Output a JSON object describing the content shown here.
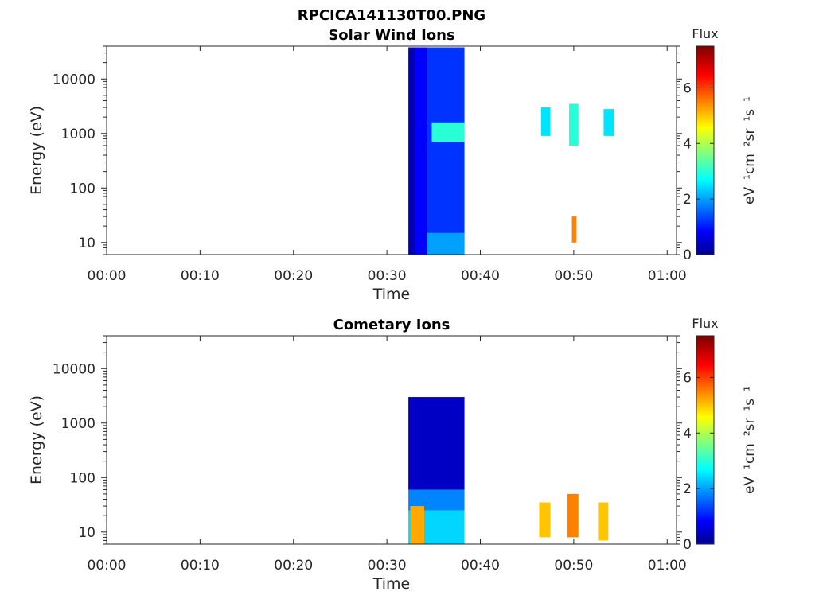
{
  "figure": {
    "title": "RPCICA141130T00.PNG"
  },
  "colorscale": {
    "name": "jet",
    "stops": [
      "#00008f",
      "#0000ff",
      "#00ffff",
      "#ffff00",
      "#ff0000",
      "#800000"
    ]
  },
  "chart_data": [
    {
      "type": "heatmap",
      "title": "Solar Wind Ions",
      "xlabel": "Time",
      "ylabel": "Energy (eV)",
      "x_ticks": [
        "00:00",
        "00:10",
        "00:20",
        "00:30",
        "00:40",
        "00:50",
        "01:00"
      ],
      "x_tick_minutes": [
        0,
        10,
        20,
        30,
        40,
        50,
        60
      ],
      "xlim_minutes": [
        0,
        61
      ],
      "y_scale": "log",
      "ylim": [
        6,
        40000
      ],
      "y_ticks": [
        "10",
        "100",
        "1000",
        "10000"
      ],
      "y_tick_values": [
        10,
        100,
        1000,
        10000
      ],
      "colorbar": {
        "label": "Flux",
        "units": "eV⁻¹cm⁻²sr⁻¹s⁻¹",
        "ticks": [
          "0",
          "2",
          "4",
          "6"
        ],
        "tick_values": [
          0,
          2,
          4,
          6
        ],
        "range": [
          0,
          7.5
        ]
      },
      "regions": [
        {
          "t_start": 32.3,
          "t_end": 33.0,
          "e_min": 6,
          "e_max": 38000,
          "flux": 0.3,
          "note": "dark blue column"
        },
        {
          "t_start": 33.0,
          "t_end": 34.3,
          "e_min": 6,
          "e_max": 38000,
          "flux": 0.8
        },
        {
          "t_start": 34.3,
          "t_end": 38.3,
          "e_min": 6,
          "e_max": 38000,
          "flux": 1.2
        },
        {
          "t_start": 34.8,
          "t_end": 38.3,
          "e_min": 700,
          "e_max": 1600,
          "flux": 3.0
        },
        {
          "t_start": 34.3,
          "t_end": 38.3,
          "e_min": 6,
          "e_max": 15,
          "flux": 2.0
        },
        {
          "t_start": 46.5,
          "t_end": 47.5,
          "e_min": 900,
          "e_max": 3000,
          "flux": 2.5
        },
        {
          "t_start": 49.5,
          "t_end": 50.5,
          "e_min": 600,
          "e_max": 3500,
          "flux": 3.0
        },
        {
          "t_start": 53.2,
          "t_end": 54.3,
          "e_min": 900,
          "e_max": 2800,
          "flux": 2.5
        },
        {
          "t_start": 49.8,
          "t_end": 50.3,
          "e_min": 10,
          "e_max": 30,
          "flux": 5.5
        }
      ]
    },
    {
      "type": "heatmap",
      "title": "Cometary Ions",
      "xlabel": "Time",
      "ylabel": "Energy (eV)",
      "x_ticks": [
        "00:00",
        "00:10",
        "00:20",
        "00:30",
        "00:40",
        "00:50",
        "01:00"
      ],
      "x_tick_minutes": [
        0,
        10,
        20,
        30,
        40,
        50,
        60
      ],
      "xlim_minutes": [
        0,
        61
      ],
      "y_scale": "log",
      "ylim": [
        6,
        40000
      ],
      "y_ticks": [
        "10",
        "100",
        "1000",
        "10000"
      ],
      "y_tick_values": [
        10,
        100,
        1000,
        10000
      ],
      "colorbar": {
        "label": "Flux",
        "units": "eV⁻¹cm⁻²sr⁻¹s⁻¹",
        "ticks": [
          "0",
          "2",
          "4",
          "6"
        ],
        "tick_values": [
          0,
          2,
          4,
          6
        ],
        "range": [
          0,
          7.5
        ]
      },
      "regions": [
        {
          "t_start": 32.3,
          "t_end": 38.3,
          "e_min": 60,
          "e_max": 3000,
          "flux": 0.4,
          "note": "dark blue"
        },
        {
          "t_start": 32.3,
          "t_end": 38.3,
          "e_min": 25,
          "e_max": 60,
          "flux": 1.8
        },
        {
          "t_start": 32.3,
          "t_end": 38.3,
          "e_min": 6,
          "e_max": 25,
          "flux": 2.4
        },
        {
          "t_start": 32.5,
          "t_end": 34.0,
          "e_min": 6,
          "e_max": 30,
          "flux": 5.2
        },
        {
          "t_start": 46.3,
          "t_end": 47.5,
          "e_min": 8,
          "e_max": 35,
          "flux": 5.0
        },
        {
          "t_start": 49.3,
          "t_end": 50.5,
          "e_min": 8,
          "e_max": 50,
          "flux": 5.5
        },
        {
          "t_start": 52.6,
          "t_end": 53.7,
          "e_min": 7,
          "e_max": 35,
          "flux": 5.0
        }
      ]
    }
  ]
}
